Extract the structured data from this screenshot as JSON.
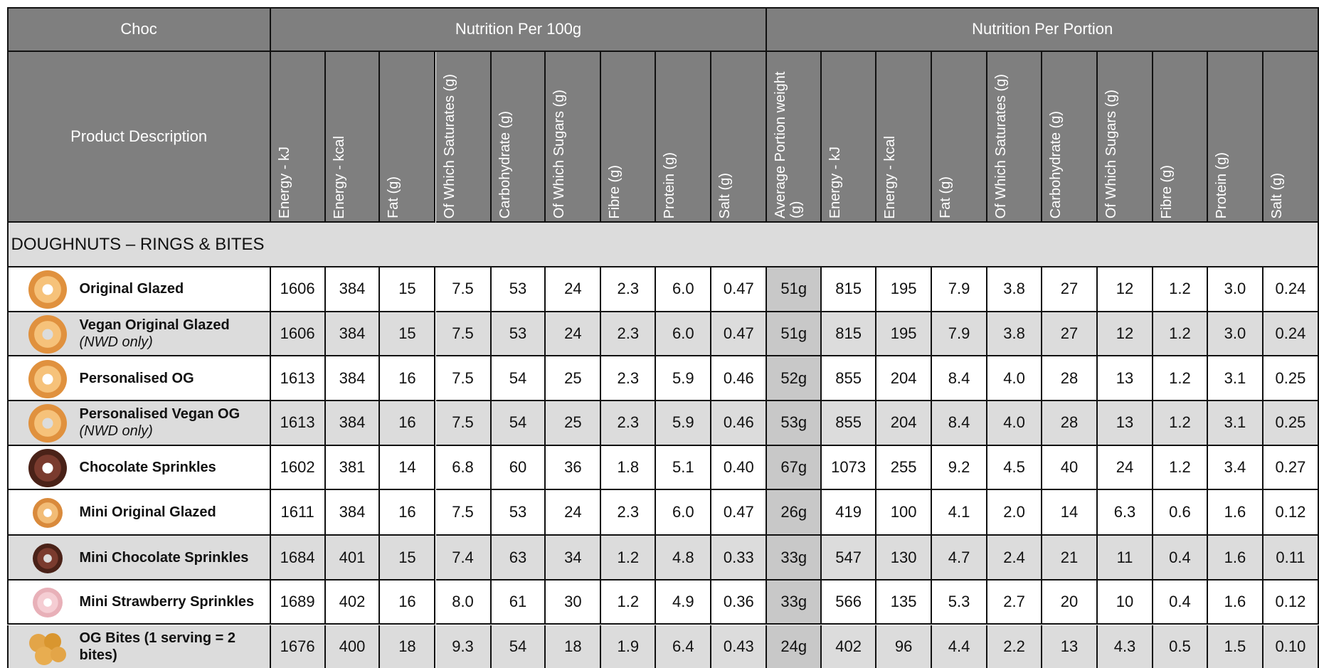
{
  "header": {
    "product_group": "Choc",
    "per_100g_group": "Nutrition Per 100g",
    "per_portion_group": "Nutrition Per Portion",
    "product_column": "Product Description"
  },
  "columns_per_100g": [
    "Energy - kJ",
    "Energy - kcal",
    "Fat (g)",
    "Of Which Saturates (g)",
    "Carbohydrate (g)",
    "Of Which Sugars (g)",
    "Fibre (g)",
    "Protein (g)",
    "Salt (g)"
  ],
  "columns_per_portion": [
    "Average Portion weight (g)",
    "Energy - kJ",
    "Energy - kcal",
    "Fat (g)",
    "Of Which Saturates (g)",
    "Carbohydrate (g)",
    "Of Which Sugars (g)",
    "Fibre (g)",
    "Protein (g)",
    "Salt (g)"
  ],
  "section": "DOUGHNUTS – RINGS & BITES",
  "rows": [
    {
      "name": "Original Glazed",
      "background": "#ffffff",
      "per_100g": [
        "1606",
        "384",
        "15",
        "7.5",
        "53",
        "24",
        "2.3",
        "6.0",
        "0.47"
      ],
      "per_portion": [
        "51g",
        "815",
        "195",
        "7.9",
        "3.8",
        "27",
        "12",
        "1.2",
        "3.0",
        "0.24"
      ]
    },
    {
      "name": "Vegan Original Glazed",
      "note": "(NWD only)",
      "background": "#dcdcdc",
      "per_100g": [
        "1606",
        "384",
        "15",
        "7.5",
        "53",
        "24",
        "2.3",
        "6.0",
        "0.47"
      ],
      "per_portion": [
        "51g",
        "815",
        "195",
        "7.9",
        "3.8",
        "27",
        "12",
        "1.2",
        "3.0",
        "0.24"
      ]
    },
    {
      "name": "Personalised OG",
      "background": "#ffffff",
      "per_100g": [
        "1613",
        "384",
        "16",
        "7.5",
        "54",
        "25",
        "2.3",
        "5.9",
        "0.46"
      ],
      "per_portion": [
        "52g",
        "855",
        "204",
        "8.4",
        "4.0",
        "28",
        "13",
        "1.2",
        "3.1",
        "0.25"
      ]
    },
    {
      "name": "Personalised Vegan OG",
      "note": "(NWD only)",
      "background": "#dcdcdc",
      "per_100g": [
        "1613",
        "384",
        "16",
        "7.5",
        "54",
        "25",
        "2.3",
        "5.9",
        "0.46"
      ],
      "per_portion": [
        "53g",
        "855",
        "204",
        "8.4",
        "4.0",
        "28",
        "13",
        "1.2",
        "3.1",
        "0.25"
      ]
    },
    {
      "name": "Chocolate Sprinkles",
      "background": "#ffffff",
      "per_100g": [
        "1602",
        "381",
        "14",
        "6.8",
        "60",
        "36",
        "1.8",
        "5.1",
        "0.40"
      ],
      "per_portion": [
        "67g",
        "1073",
        "255",
        "9.2",
        "4.5",
        "40",
        "24",
        "1.2",
        "3.4",
        "0.27"
      ]
    },
    {
      "name": "Mini Original Glazed",
      "background": "#ffffff",
      "per_100g": [
        "1611",
        "384",
        "16",
        "7.5",
        "53",
        "24",
        "2.3",
        "6.0",
        "0.47"
      ],
      "per_portion": [
        "26g",
        "419",
        "100",
        "4.1",
        "2.0",
        "14",
        "6.3",
        "0.6",
        "1.6",
        "0.12"
      ]
    },
    {
      "name": "Mini Chocolate Sprinkles",
      "background": "#dcdcdc",
      "per_100g": [
        "1684",
        "401",
        "15",
        "7.4",
        "63",
        "34",
        "1.2",
        "4.8",
        "0.33"
      ],
      "per_portion": [
        "33g",
        "547",
        "130",
        "4.7",
        "2.4",
        "21",
        "11",
        "0.4",
        "1.6",
        "0.11"
      ]
    },
    {
      "name": "Mini Strawberry Sprinkles",
      "background": "#ffffff",
      "per_100g": [
        "1689",
        "402",
        "16",
        "8.0",
        "61",
        "30",
        "1.2",
        "4.9",
        "0.36"
      ],
      "per_portion": [
        "33g",
        "566",
        "135",
        "5.3",
        "2.7",
        "20",
        "10",
        "0.4",
        "1.6",
        "0.12"
      ]
    },
    {
      "name": "OG Bites (1 serving = 2 bites)",
      "background": "#dcdcdc",
      "per_100g": [
        "1676",
        "400",
        "18",
        "9.3",
        "54",
        "18",
        "1.9",
        "6.4",
        "0.43"
      ],
      "per_portion": [
        "24g",
        "402",
        "96",
        "4.4",
        "2.2",
        "13",
        "4.3",
        "0.5",
        "1.5",
        "0.10"
      ]
    }
  ]
}
